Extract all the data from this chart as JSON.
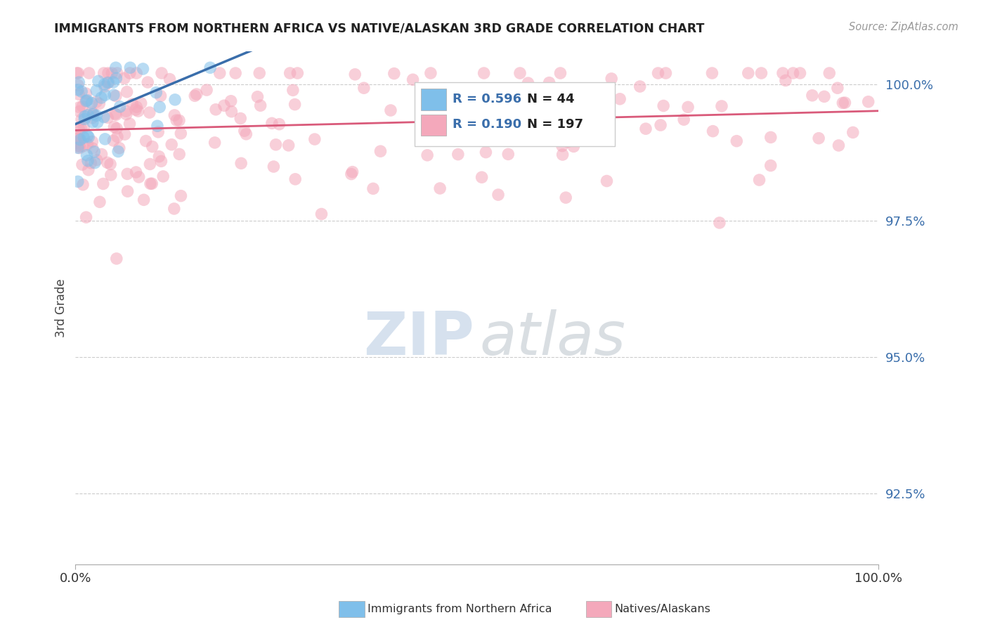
{
  "title": "IMMIGRANTS FROM NORTHERN AFRICA VS NATIVE/ALASKAN 3RD GRADE CORRELATION CHART",
  "source_text": "Source: ZipAtlas.com",
  "ylabel": "3rd Grade",
  "xlim": [
    0.0,
    1.0
  ],
  "ylim": [
    0.912,
    1.006
  ],
  "yticks": [
    0.925,
    0.95,
    0.975,
    1.0
  ],
  "ytick_labels": [
    "92.5%",
    "95.0%",
    "97.5%",
    "100.0%"
  ],
  "xticks": [
    0.0,
    1.0
  ],
  "xtick_labels": [
    "0.0%",
    "100.0%"
  ],
  "legend_blue_R": "0.596",
  "legend_blue_N": "44",
  "legend_pink_R": "0.190",
  "legend_pink_N": "197",
  "blue_color": "#7fbfea",
  "pink_color": "#f4a8bb",
  "blue_line_color": "#3a6eab",
  "pink_line_color": "#d95a7a",
  "watermark_zip_color": "#c8d8ec",
  "watermark_atlas_color": "#b8c8d8"
}
